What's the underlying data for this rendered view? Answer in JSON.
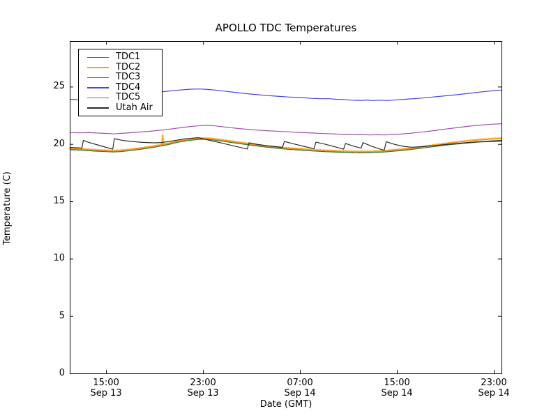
{
  "chart_data": {
    "type": "line",
    "title": "APOLLO TDC Temperatures",
    "xlabel": "Date (GMT)",
    "ylabel": "Temperature (C)",
    "grid": false,
    "legend_position": "upper left",
    "x_unit": "hours since Sep 13 12:00 GMT",
    "xlim_hours": [
      0,
      35.63
    ],
    "ylim": [
      0,
      28.97
    ],
    "yticks": [
      {
        "value": 0,
        "label": "0"
      },
      {
        "value": 5,
        "label": "5"
      },
      {
        "value": 10,
        "label": "10"
      },
      {
        "value": 15,
        "label": "15"
      },
      {
        "value": 20,
        "label": "20"
      },
      {
        "value": 25,
        "label": "25"
      }
    ],
    "xticks": [
      {
        "hour": 3,
        "time": "15:00",
        "date": "Sep 13"
      },
      {
        "hour": 11,
        "time": "23:00",
        "date": "Sep 13"
      },
      {
        "hour": 19,
        "time": "07:00",
        "date": "Sep 14"
      },
      {
        "hour": 27,
        "time": "15:00",
        "date": "Sep 14"
      },
      {
        "hour": 35,
        "time": "23:00",
        "date": "Sep 14"
      }
    ],
    "series": [
      {
        "name": "TDC1",
        "color": "#e03232",
        "markers": false,
        "points": [
          [
            0,
            19.58
          ],
          [
            1,
            19.54
          ],
          [
            2,
            19.46
          ],
          [
            3,
            19.41
          ],
          [
            3.6,
            19.38
          ],
          [
            4.2,
            19.42
          ],
          [
            5,
            19.5
          ],
          [
            6,
            19.64
          ],
          [
            7,
            19.8
          ],
          [
            8,
            20.0
          ],
          [
            9,
            20.25
          ],
          [
            10,
            20.41
          ],
          [
            10.8,
            20.49
          ],
          [
            11.5,
            20.47
          ],
          [
            12,
            20.41
          ],
          [
            13,
            20.27
          ],
          [
            14,
            20.11
          ],
          [
            15,
            19.97
          ],
          [
            16,
            19.83
          ],
          [
            17,
            19.72
          ],
          [
            18,
            19.62
          ],
          [
            19,
            19.55
          ],
          [
            20,
            19.47
          ],
          [
            21,
            19.42
          ],
          [
            22,
            19.37
          ],
          [
            23,
            19.33
          ],
          [
            24,
            19.31
          ],
          [
            25,
            19.33
          ],
          [
            26,
            19.39
          ],
          [
            27,
            19.48
          ],
          [
            28,
            19.58
          ],
          [
            29,
            19.72
          ],
          [
            30,
            19.87
          ],
          [
            31,
            20.02
          ],
          [
            32,
            20.15
          ],
          [
            33,
            20.27
          ],
          [
            34,
            20.37
          ],
          [
            35,
            20.44
          ],
          [
            35.63,
            20.47
          ]
        ]
      },
      {
        "name": "TDC2",
        "color": "#ffa319",
        "markers": true,
        "points": [
          [
            0,
            19.62
          ],
          [
            1,
            19.58
          ],
          [
            2,
            19.5
          ],
          [
            3,
            19.45
          ],
          [
            3.6,
            19.42
          ],
          [
            4.2,
            19.46
          ],
          [
            5,
            19.54
          ],
          [
            6,
            19.68
          ],
          [
            7,
            19.84
          ],
          [
            7.6,
            19.95
          ],
          [
            7.66,
            20.82
          ],
          [
            7.73,
            19.98
          ],
          [
            8,
            20.04
          ],
          [
            9,
            20.29
          ],
          [
            10,
            20.45
          ],
          [
            10.8,
            20.53
          ],
          [
            11.5,
            20.51
          ],
          [
            12,
            20.45
          ],
          [
            13,
            20.31
          ],
          [
            14,
            20.15
          ],
          [
            15,
            20.01
          ],
          [
            16,
            19.87
          ],
          [
            17,
            19.76
          ],
          [
            18,
            19.66
          ],
          [
            19,
            19.59
          ],
          [
            20,
            19.51
          ],
          [
            21,
            19.46
          ],
          [
            22,
            19.41
          ],
          [
            23,
            19.37
          ],
          [
            24,
            19.35
          ],
          [
            25,
            19.37
          ],
          [
            26,
            19.43
          ],
          [
            27,
            19.52
          ],
          [
            28,
            19.62
          ],
          [
            29,
            19.76
          ],
          [
            30,
            19.91
          ],
          [
            31,
            20.06
          ],
          [
            32,
            20.19
          ],
          [
            33,
            20.31
          ],
          [
            34,
            20.41
          ],
          [
            35,
            20.48
          ],
          [
            35.63,
            20.51
          ]
        ]
      },
      {
        "name": "TDC3",
        "color": "#2b7d2b",
        "markers": false,
        "points": [
          [
            0,
            19.5
          ],
          [
            1,
            19.46
          ],
          [
            2,
            19.38
          ],
          [
            3,
            19.33
          ],
          [
            3.6,
            19.3
          ],
          [
            4.2,
            19.34
          ],
          [
            5,
            19.42
          ],
          [
            6,
            19.56
          ],
          [
            7,
            19.72
          ],
          [
            8,
            19.92
          ],
          [
            9,
            20.17
          ],
          [
            10,
            20.33
          ],
          [
            10.8,
            20.41
          ],
          [
            11.5,
            20.39
          ],
          [
            12,
            20.33
          ],
          [
            13,
            20.19
          ],
          [
            14,
            20.03
          ],
          [
            15,
            19.89
          ],
          [
            16,
            19.75
          ],
          [
            17,
            19.64
          ],
          [
            18,
            19.54
          ],
          [
            19,
            19.47
          ],
          [
            20,
            19.39
          ],
          [
            21,
            19.34
          ],
          [
            22,
            19.29
          ],
          [
            23,
            19.25
          ],
          [
            24,
            19.23
          ],
          [
            25,
            19.25
          ],
          [
            26,
            19.31
          ],
          [
            27,
            19.4
          ],
          [
            28,
            19.5
          ],
          [
            29,
            19.63
          ],
          [
            30,
            19.77
          ],
          [
            31,
            19.9
          ],
          [
            32,
            20.0
          ],
          [
            33,
            20.1
          ],
          [
            34,
            20.18
          ],
          [
            35,
            20.22
          ],
          [
            35.63,
            20.24
          ]
        ]
      },
      {
        "name": "TDC4",
        "color": "#4646dd",
        "markers": false,
        "points": [
          [
            0,
            23.9
          ],
          [
            1,
            23.85
          ],
          [
            2,
            23.88
          ],
          [
            3,
            23.95
          ],
          [
            4,
            24.08
          ],
          [
            5,
            24.2
          ],
          [
            6,
            24.35
          ],
          [
            7,
            24.48
          ],
          [
            8,
            24.6
          ],
          [
            9,
            24.7
          ],
          [
            10,
            24.78
          ],
          [
            10.7,
            24.8
          ],
          [
            11.5,
            24.75
          ],
          [
            12,
            24.7
          ],
          [
            13,
            24.58
          ],
          [
            14,
            24.45
          ],
          [
            15,
            24.35
          ],
          [
            16,
            24.25
          ],
          [
            17,
            24.17
          ],
          [
            18,
            24.1
          ],
          [
            19,
            24.05
          ],
          [
            20,
            23.98
          ],
          [
            20.7,
            23.95
          ],
          [
            21.4,
            23.95
          ],
          [
            22,
            23.9
          ],
          [
            22.6,
            23.88
          ],
          [
            23.2,
            23.82
          ],
          [
            24,
            23.8
          ],
          [
            24.6,
            23.83
          ],
          [
            25,
            23.79
          ],
          [
            25.6,
            23.82
          ],
          [
            26.2,
            23.79
          ],
          [
            27,
            23.85
          ],
          [
            28,
            23.92
          ],
          [
            29,
            24.0
          ],
          [
            30,
            24.1
          ],
          [
            31,
            24.2
          ],
          [
            32,
            24.3
          ],
          [
            33,
            24.42
          ],
          [
            34,
            24.55
          ],
          [
            35,
            24.65
          ],
          [
            35.63,
            24.7
          ]
        ]
      },
      {
        "name": "TDC5",
        "color": "#a050aa",
        "markers": false,
        "points": [
          [
            0,
            21.0
          ],
          [
            0.8,
            20.97
          ],
          [
            1.5,
            21.01
          ],
          [
            2.2,
            20.96
          ],
          [
            3,
            20.92
          ],
          [
            3.7,
            20.88
          ],
          [
            4.5,
            20.95
          ],
          [
            5.5,
            21.02
          ],
          [
            6.5,
            21.1
          ],
          [
            7.5,
            21.2
          ],
          [
            8.5,
            21.33
          ],
          [
            9.5,
            21.47
          ],
          [
            10.5,
            21.58
          ],
          [
            11.3,
            21.63
          ],
          [
            12,
            21.58
          ],
          [
            13,
            21.46
          ],
          [
            14,
            21.34
          ],
          [
            15,
            21.25
          ],
          [
            16,
            21.18
          ],
          [
            17,
            21.12
          ],
          [
            18,
            21.06
          ],
          [
            19,
            21.01
          ],
          [
            20,
            20.96
          ],
          [
            21,
            20.91
          ],
          [
            22,
            20.87
          ],
          [
            23,
            20.81
          ],
          [
            24,
            20.83
          ],
          [
            24.7,
            20.79
          ],
          [
            25.4,
            20.81
          ],
          [
            26,
            20.79
          ],
          [
            27,
            20.84
          ],
          [
            28,
            20.92
          ],
          [
            29,
            21.03
          ],
          [
            30,
            21.16
          ],
          [
            31,
            21.3
          ],
          [
            32,
            21.43
          ],
          [
            33,
            21.56
          ],
          [
            34,
            21.66
          ],
          [
            35,
            21.73
          ],
          [
            35.63,
            21.77
          ]
        ]
      },
      {
        "name": "Utah Air",
        "color": "#2b2b2b",
        "markers": false,
        "points": [
          [
            0,
            19.7
          ],
          [
            0.5,
            19.68
          ],
          [
            1.0,
            19.64
          ],
          [
            1.12,
            20.32
          ],
          [
            1.6,
            20.13
          ],
          [
            2.1,
            19.98
          ],
          [
            2.6,
            19.83
          ],
          [
            3.1,
            19.68
          ],
          [
            3.55,
            19.55
          ],
          [
            3.68,
            20.46
          ],
          [
            4.3,
            20.33
          ],
          [
            5,
            20.23
          ],
          [
            6,
            20.14
          ],
          [
            7,
            20.1
          ],
          [
            7.6,
            20.13
          ],
          [
            8.5,
            20.27
          ],
          [
            9.5,
            20.45
          ],
          [
            10.6,
            20.55
          ],
          [
            11.5,
            20.33
          ],
          [
            12.5,
            20.09
          ],
          [
            13.5,
            19.84
          ],
          [
            14.65,
            19.56
          ],
          [
            14.8,
            20.1
          ],
          [
            15.5,
            19.96
          ],
          [
            16.5,
            19.82
          ],
          [
            17.55,
            19.71
          ],
          [
            17.72,
            20.22
          ],
          [
            18.4,
            20.03
          ],
          [
            19.3,
            19.8
          ],
          [
            20.15,
            19.6
          ],
          [
            20.32,
            20.16
          ],
          [
            21,
            20.0
          ],
          [
            21.8,
            19.78
          ],
          [
            22.6,
            19.55
          ],
          [
            22.76,
            20.05
          ],
          [
            23.4,
            19.82
          ],
          [
            24.05,
            19.64
          ],
          [
            24.2,
            20.12
          ],
          [
            24.8,
            19.85
          ],
          [
            25.4,
            19.63
          ],
          [
            25.95,
            19.45
          ],
          [
            26.12,
            20.2
          ],
          [
            26.8,
            19.97
          ],
          [
            27.5,
            19.8
          ],
          [
            28.2,
            19.72
          ],
          [
            29,
            19.76
          ],
          [
            30,
            19.85
          ],
          [
            31,
            19.95
          ],
          [
            32,
            20.05
          ],
          [
            33,
            20.14
          ],
          [
            34,
            20.22
          ],
          [
            35,
            20.28
          ],
          [
            35.63,
            20.31
          ]
        ]
      }
    ]
  }
}
